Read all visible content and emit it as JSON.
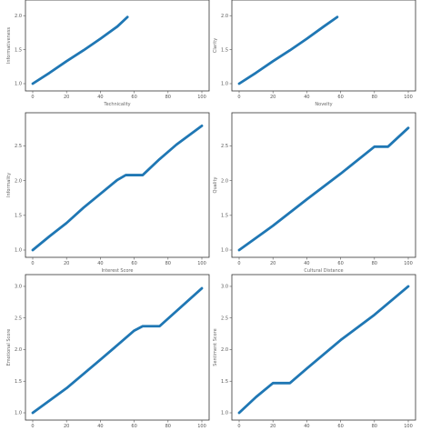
{
  "figure": {
    "line_color": "#1f77b4"
  },
  "chart_data": [
    {
      "type": "line",
      "xlabel": "Technicality",
      "ylabel": "Informativeness",
      "xlim": [
        0,
        100
      ],
      "ylim": [
        1.0,
        2.15
      ],
      "xticks": [
        "0",
        "20",
        "40",
        "60",
        "80",
        "100"
      ],
      "yticks": [
        "1.0",
        "1.5",
        "2.0"
      ],
      "x": [
        0,
        10,
        20,
        30,
        40,
        50,
        56
      ],
      "y": [
        1.0,
        1.16,
        1.33,
        1.49,
        1.66,
        1.84,
        1.98
      ]
    },
    {
      "type": "line",
      "xlabel": "Novelty",
      "ylabel": "Clarity",
      "xlim": [
        0,
        100
      ],
      "ylim": [
        1.0,
        2.15
      ],
      "xticks": [
        "0",
        "20",
        "40",
        "60",
        "80",
        "100"
      ],
      "yticks": [
        "1.0",
        "1.5",
        "2.0"
      ],
      "x": [
        0,
        10,
        20,
        30,
        40,
        50,
        58
      ],
      "y": [
        1.0,
        1.16,
        1.33,
        1.49,
        1.66,
        1.84,
        1.98
      ]
    },
    {
      "type": "line",
      "xlabel": "Interest Score",
      "ylabel": "Informality",
      "xlim": [
        0,
        100
      ],
      "ylim": [
        1.0,
        2.9
      ],
      "xticks": [
        "0",
        "20",
        "40",
        "60",
        "80",
        "100"
      ],
      "yticks": [
        "1.0",
        "1.5",
        "2.0",
        "2.5"
      ],
      "x": [
        0,
        10,
        20,
        30,
        40,
        50,
        55,
        65,
        75,
        85,
        100
      ],
      "y": [
        1.0,
        1.2,
        1.39,
        1.61,
        1.81,
        2.01,
        2.08,
        2.08,
        2.31,
        2.52,
        2.79
      ]
    },
    {
      "type": "line",
      "xlabel": "Cultural Distance",
      "ylabel": "Quality",
      "xlim": [
        0,
        100
      ],
      "ylim": [
        1.0,
        2.9
      ],
      "xticks": [
        "0",
        "20",
        "40",
        "60",
        "80",
        "100"
      ],
      "yticks": [
        "1.0",
        "1.5",
        "2.0",
        "2.5"
      ],
      "x": [
        0,
        20,
        40,
        60,
        80,
        88,
        100
      ],
      "y": [
        1.0,
        1.35,
        1.73,
        2.1,
        2.49,
        2.49,
        2.76
      ]
    },
    {
      "type": "line",
      "xlabel": "",
      "ylabel": "Emotional Score",
      "xlim": [
        0,
        100
      ],
      "ylim": [
        1.0,
        3.1
      ],
      "xticks": [
        "0",
        "20",
        "40",
        "60",
        "80",
        "100"
      ],
      "yticks": [
        "1.0",
        "1.5",
        "2.0",
        "2.5",
        "3.0"
      ],
      "x": [
        0,
        20,
        40,
        60,
        65,
        75,
        100
      ],
      "y": [
        1.0,
        1.39,
        1.84,
        2.3,
        2.37,
        2.37,
        2.97
      ]
    },
    {
      "type": "line",
      "xlabel": "",
      "ylabel": "Sentiment Score",
      "xlim": [
        0,
        100
      ],
      "ylim": [
        1.0,
        3.1
      ],
      "xticks": [
        "0",
        "20",
        "40",
        "60",
        "80",
        "100"
      ],
      "yticks": [
        "1.0",
        "1.5",
        "2.0",
        "2.5",
        "3.0"
      ],
      "x": [
        0,
        10,
        20,
        30,
        40,
        60,
        80,
        100
      ],
      "y": [
        1.0,
        1.25,
        1.47,
        1.47,
        1.7,
        2.15,
        2.55,
        3.0
      ]
    }
  ]
}
